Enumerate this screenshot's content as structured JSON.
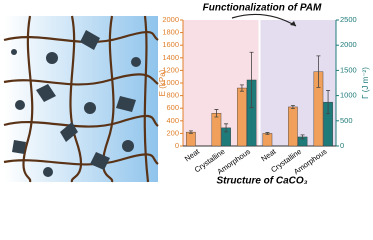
{
  "chart_data": {
    "type": "bar",
    "title": "Functionalization of PAM",
    "x_label": "Structure of CaCO₃",
    "y_label": "E (kPa)",
    "y2_label": "Γ (J m⁻²)",
    "categories": [
      "Neat",
      "Crystalline",
      "Amorphous",
      "Neat",
      "Crystalline",
      "Amorphous"
    ],
    "series": [
      {
        "color": "#f0a05a",
        "values": [
          220,
          520,
          920,
          200,
          620,
          1180
        ],
        "errors": [
          20,
          60,
          50,
          15,
          25,
          250
        ]
      },
      {
        "color": "#1f7a7a",
        "axis": "y2",
        "values": [
          null,
          360,
          1310,
          null,
          180,
          870
        ],
        "errors": [
          null,
          80,
          550,
          null,
          40,
          230
        ]
      }
    ],
    "ylim": [
      0,
      2000
    ],
    "yticks": [
      0,
      200,
      400,
      600,
      800,
      1000,
      1200,
      1400,
      1600,
      1800,
      2000
    ],
    "y2lim": [
      0,
      2500
    ],
    "y2ticks": [
      0,
      500,
      1000,
      1500,
      2000,
      2500
    ]
  }
}
